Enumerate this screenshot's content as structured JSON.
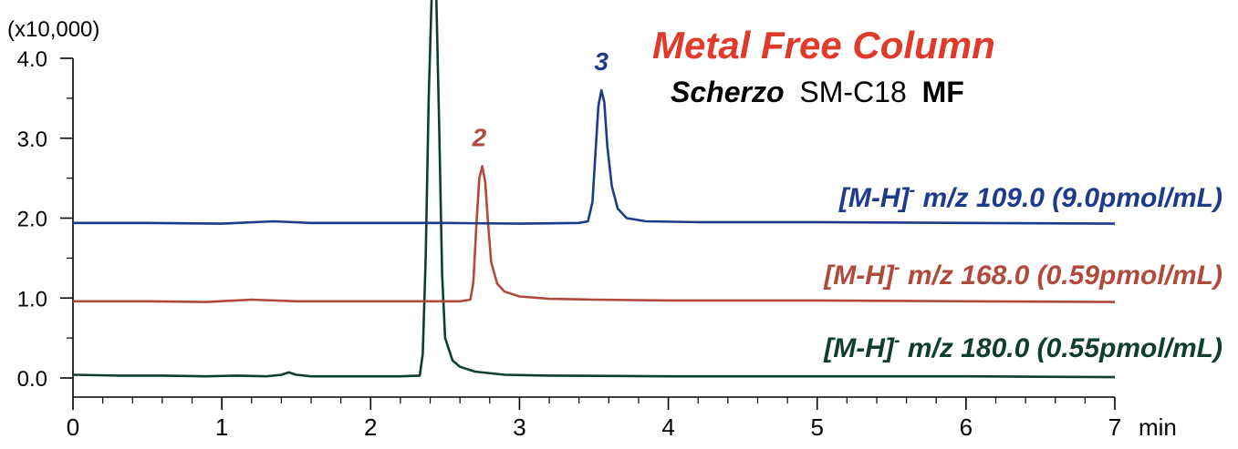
{
  "chart_data": {
    "type": "line",
    "title": "Metal Free Column",
    "subtitle": {
      "brand": "Scherzo",
      "model": "SM-C18",
      "suffix": "MF"
    },
    "scale_label": "(x10,000)",
    "xunit": "min",
    "xlim": [
      0,
      7
    ],
    "ylim": [
      0,
      4
    ],
    "xticks": [
      "0",
      "1",
      "2",
      "3",
      "4",
      "5",
      "6",
      "7"
    ],
    "yticks": [
      "0.0",
      "1.0",
      "2.0",
      "3.0",
      "4.0"
    ],
    "series": [
      {
        "name": "[M-H]- m/z 180.0 (0.55pmol/mL)",
        "label_main": "[M-H]",
        "label_super": "-",
        "label_rest": " m/z 180.0 (0.55pmol/mL)",
        "color": "#0f3d2e",
        "baseline": 0.03,
        "points": [
          [
            0,
            0.04
          ],
          [
            0.3,
            0.03
          ],
          [
            0.6,
            0.03
          ],
          [
            0.9,
            0.02
          ],
          [
            1.1,
            0.03
          ],
          [
            1.3,
            0.02
          ],
          [
            1.4,
            0.04
          ],
          [
            1.45,
            0.07
          ],
          [
            1.5,
            0.04
          ],
          [
            1.6,
            0.02
          ],
          [
            1.9,
            0.02
          ],
          [
            2.2,
            0.02
          ],
          [
            2.33,
            0.03
          ],
          [
            2.35,
            0.3
          ],
          [
            2.37,
            1.5
          ],
          [
            2.39,
            3.5
          ],
          [
            2.41,
            4.8
          ],
          [
            2.44,
            5.0
          ],
          [
            2.46,
            3.2
          ],
          [
            2.48,
            1.3
          ],
          [
            2.5,
            0.5
          ],
          [
            2.55,
            0.22
          ],
          [
            2.6,
            0.14
          ],
          [
            2.7,
            0.08
          ],
          [
            2.9,
            0.04
          ],
          [
            3.2,
            0.03
          ],
          [
            4,
            0.02
          ],
          [
            5,
            0.02
          ],
          [
            6,
            0.02
          ],
          [
            7,
            0.01
          ]
        ]
      },
      {
        "name": "[M-H]- m/z 168.0 (0.59pmol/mL)",
        "label_main": "[M-H]",
        "label_super": "-",
        "label_rest": " m/z 168.0 (0.59pmol/mL)",
        "color": "#b04a3c",
        "baseline": 0.96,
        "points": [
          [
            0,
            0.96
          ],
          [
            0.5,
            0.96
          ],
          [
            0.9,
            0.95
          ],
          [
            1.2,
            0.98
          ],
          [
            1.5,
            0.96
          ],
          [
            2.0,
            0.96
          ],
          [
            2.3,
            0.96
          ],
          [
            2.6,
            0.96
          ],
          [
            2.67,
            0.98
          ],
          [
            2.69,
            1.2
          ],
          [
            2.71,
            1.9
          ],
          [
            2.73,
            2.5
          ],
          [
            2.75,
            2.65
          ],
          [
            2.77,
            2.45
          ],
          [
            2.79,
            1.9
          ],
          [
            2.81,
            1.45
          ],
          [
            2.85,
            1.18
          ],
          [
            2.9,
            1.08
          ],
          [
            3.0,
            1.02
          ],
          [
            3.2,
            0.99
          ],
          [
            3.5,
            0.98
          ],
          [
            4,
            0.97
          ],
          [
            5,
            0.97
          ],
          [
            6,
            0.96
          ],
          [
            7,
            0.95
          ]
        ]
      },
      {
        "name": "[M-H]- m/z 109.0 (9.0pmol/mL)",
        "label_main": "[M-H]",
        "label_super": "-",
        "label_rest": " m/z 109.0 (9.0pmol/mL)",
        "color": "#1e3a8a",
        "baseline": 1.94,
        "points": [
          [
            0,
            1.94
          ],
          [
            0.5,
            1.94
          ],
          [
            1.0,
            1.93
          ],
          [
            1.35,
            1.96
          ],
          [
            1.6,
            1.94
          ],
          [
            2.0,
            1.94
          ],
          [
            2.5,
            1.94
          ],
          [
            3.0,
            1.93
          ],
          [
            3.4,
            1.94
          ],
          [
            3.46,
            1.96
          ],
          [
            3.49,
            2.2
          ],
          [
            3.51,
            2.8
          ],
          [
            3.53,
            3.4
          ],
          [
            3.55,
            3.6
          ],
          [
            3.57,
            3.45
          ],
          [
            3.59,
            2.9
          ],
          [
            3.62,
            2.4
          ],
          [
            3.66,
            2.12
          ],
          [
            3.72,
            2.0
          ],
          [
            3.85,
            1.96
          ],
          [
            4.2,
            1.95
          ],
          [
            5,
            1.95
          ],
          [
            6,
            1.94
          ],
          [
            7,
            1.93
          ]
        ]
      }
    ],
    "peak_labels": [
      {
        "text": "2",
        "x": 2.73,
        "y": 2.9,
        "color": "#b04a3c"
      },
      {
        "text": "3",
        "x": 3.55,
        "y": 3.85,
        "color": "#1e3a8a"
      }
    ],
    "title_color": "#e03a2a",
    "grid": false,
    "legend": "inline-right"
  }
}
